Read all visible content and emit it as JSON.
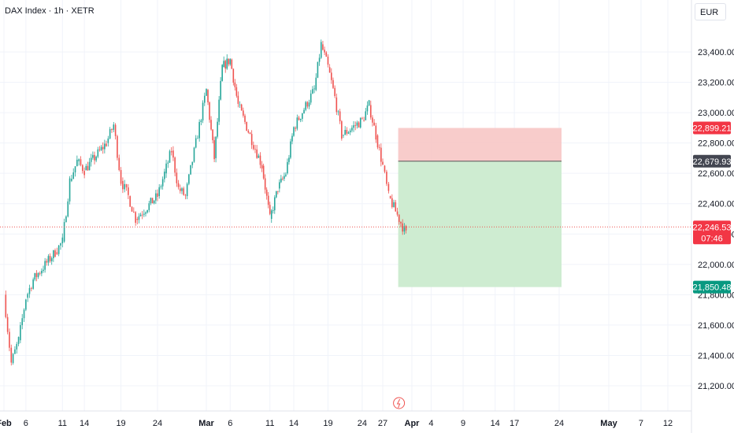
{
  "header": {
    "title": "DAX Index · 1h · XETR"
  },
  "currency": "EUR",
  "colors": {
    "up": "#26a69a",
    "down": "#ef5350",
    "stop_zone": "#f7c6c5",
    "target_zone": "#cbebcf",
    "grid": "#f0f3fa"
  },
  "chart_data": {
    "type": "candlestick",
    "title": "DAX Index · 1h · XETR",
    "y_ticks": [
      21200,
      21400,
      21600,
      21800,
      22000,
      22200,
      22400,
      22600,
      22800,
      23000,
      23200,
      23400
    ],
    "y_tick_labels": [
      "21,200.00",
      "21,400.00",
      "21,600.00",
      "21,800.00",
      "22,000.00",
      "22,200.00",
      "22,400.00",
      "22,600.00",
      "22,800.00",
      "23,000.00",
      "23,200.00",
      "23,400.00"
    ],
    "ylim": [
      21040,
      23560
    ],
    "x_labels": [
      {
        "date": "2025-02-03",
        "label": "Feb"
      },
      {
        "date": "2025-02-06",
        "label": "6"
      },
      {
        "date": "2025-02-11",
        "label": "11"
      },
      {
        "date": "2025-02-14",
        "label": "14"
      },
      {
        "date": "2025-02-19",
        "label": "19"
      },
      {
        "date": "2025-02-24",
        "label": "24"
      },
      {
        "date": "2025-03-03",
        "label": "Mar"
      },
      {
        "date": "2025-03-06",
        "label": "6"
      },
      {
        "date": "2025-03-11",
        "label": "11"
      },
      {
        "date": "2025-03-14",
        "label": "14"
      },
      {
        "date": "2025-03-19",
        "label": "19"
      },
      {
        "date": "2025-03-24",
        "label": "24"
      },
      {
        "date": "2025-03-27",
        "label": "27"
      },
      {
        "date": "2025-04-01",
        "label": "Apr"
      },
      {
        "date": "2025-04-04",
        "label": "4"
      },
      {
        "date": "2025-04-09",
        "label": "9"
      },
      {
        "date": "2025-04-14",
        "label": "14"
      },
      {
        "date": "2025-04-17",
        "label": "17"
      },
      {
        "date": "2025-04-24",
        "label": "24"
      },
      {
        "date": "2025-05-01",
        "label": "May"
      },
      {
        "date": "2025-05-07",
        "label": "7"
      },
      {
        "date": "2025-05-12",
        "label": "12"
      }
    ],
    "price_path": [
      [
        "2025-02-03",
        21800
      ],
      [
        "2025-02-04",
        21350
      ],
      [
        "2025-02-05",
        21500
      ],
      [
        "2025-02-06",
        21780
      ],
      [
        "2025-02-07",
        21900
      ],
      [
        "2025-02-10",
        22080
      ],
      [
        "2025-02-11",
        22150
      ],
      [
        "2025-02-12",
        22550
      ],
      [
        "2025-02-13",
        22680
      ],
      [
        "2025-02-14",
        22620
      ],
      [
        "2025-02-17",
        22800
      ],
      [
        "2025-02-18",
        22920
      ],
      [
        "2025-02-19",
        22550
      ],
      [
        "2025-02-20",
        22450
      ],
      [
        "2025-02-21",
        22300
      ],
      [
        "2025-02-24",
        22450
      ],
      [
        "2025-02-25",
        22600
      ],
      [
        "2025-02-26",
        22750
      ],
      [
        "2025-02-27",
        22500
      ],
      [
        "2025-02-28",
        22450
      ],
      [
        "2025-03-03",
        23150
      ],
      [
        "2025-03-04",
        22700
      ],
      [
        "2025-03-05",
        23300
      ],
      [
        "2025-03-06",
        23350
      ],
      [
        "2025-03-07",
        23050
      ],
      [
        "2025-03-10",
        22650
      ],
      [
        "2025-03-11",
        22300
      ],
      [
        "2025-03-12",
        22500
      ],
      [
        "2025-03-13",
        22600
      ],
      [
        "2025-03-14",
        22900
      ],
      [
        "2025-03-17",
        23150
      ],
      [
        "2025-03-18",
        23450
      ],
      [
        "2025-03-19",
        23300
      ],
      [
        "2025-03-20",
        23100
      ],
      [
        "2025-03-21",
        22850
      ],
      [
        "2025-03-24",
        22950
      ],
      [
        "2025-03-25",
        23050
      ],
      [
        "2025-03-26",
        22850
      ],
      [
        "2025-03-27",
        22650
      ],
      [
        "2025-03-28",
        22450
      ],
      [
        "2025-03-31",
        22200
      ]
    ],
    "current_price": "22,246.53",
    "countdown": "07:46",
    "position": {
      "type": "short",
      "stop_loss": "22,899.21",
      "entry": "22,679.93",
      "take_profit": "21,850.48",
      "stop_loss_value": 22899.21,
      "entry_value": 22679.93,
      "take_profit_value": 21850.48,
      "start_date": "2025-03-31",
      "end_date": "2025-04-24"
    }
  }
}
